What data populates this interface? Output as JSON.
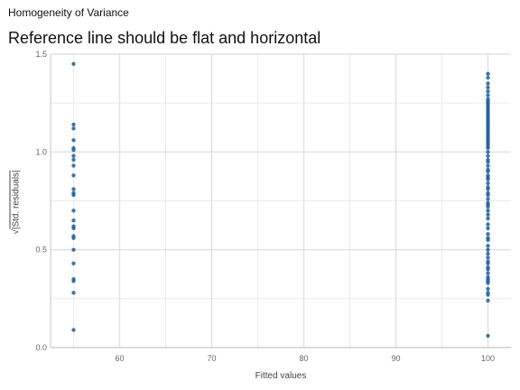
{
  "title": "Homogeneity of Variance",
  "subtitle": "Reference line should be flat and horizontal",
  "chart_data": {
    "type": "scatter",
    "xlabel": "Fitted values",
    "ylabel_radical": "√",
    "ylabel_text": "|Std. residuals|",
    "xlim": [
      52.5,
      102.5
    ],
    "ylim": [
      0,
      1.5
    ],
    "x_ticks": [
      60,
      70,
      80,
      90,
      100
    ],
    "y_ticks": [
      0.0,
      0.5,
      1.0,
      1.5
    ],
    "y_tick_labels": [
      "0.0",
      "0.5",
      "1.0",
      "1.5"
    ],
    "grid": true,
    "point_color": "#1f5f99",
    "series": [
      {
        "x": [
          55,
          55,
          55,
          55,
          55,
          55,
          55,
          55,
          55,
          55,
          55,
          55,
          55,
          55,
          55,
          55,
          55,
          55,
          55,
          55,
          55,
          55,
          55,
          55,
          55
        ],
        "y": [
          1.45,
          1.14,
          1.12,
          1.06,
          1.02,
          1.01,
          0.98,
          0.96,
          0.93,
          0.88,
          0.81,
          0.79,
          0.78,
          0.7,
          0.65,
          0.62,
          0.61,
          0.57,
          0.56,
          0.5,
          0.43,
          0.35,
          0.34,
          0.28,
          0.09
        ]
      },
      {
        "x": [
          100,
          100,
          100,
          100,
          100,
          100,
          100,
          100,
          100,
          100,
          100,
          100,
          100,
          100,
          100,
          100,
          100,
          100,
          100,
          100,
          100,
          100,
          100,
          100,
          100,
          100,
          100,
          100,
          100,
          100,
          100,
          100,
          100,
          100,
          100,
          100,
          100,
          100,
          100,
          100,
          100,
          100,
          100,
          100,
          100,
          100,
          100,
          100,
          100,
          100,
          100,
          100,
          100,
          100,
          100,
          100,
          100,
          100,
          100,
          100,
          100,
          100,
          100,
          100,
          100,
          100,
          100,
          100,
          100,
          100,
          100,
          100,
          100,
          100,
          100,
          100,
          100
        ],
        "y": [
          1.4,
          1.38,
          1.35,
          1.33,
          1.31,
          1.29,
          1.27,
          1.26,
          1.25,
          1.24,
          1.23,
          1.22,
          1.21,
          1.2,
          1.19,
          1.18,
          1.17,
          1.16,
          1.15,
          1.14,
          1.13,
          1.12,
          1.11,
          1.1,
          1.09,
          1.08,
          1.07,
          1.06,
          1.05,
          1.04,
          1.03,
          1.02,
          1.0,
          0.98,
          0.96,
          0.95,
          0.93,
          0.91,
          0.9,
          0.88,
          0.87,
          0.86,
          0.84,
          0.82,
          0.81,
          0.79,
          0.78,
          0.76,
          0.74,
          0.73,
          0.72,
          0.7,
          0.68,
          0.66,
          0.63,
          0.61,
          0.58,
          0.56,
          0.55,
          0.52,
          0.5,
          0.48,
          0.46,
          0.44,
          0.43,
          0.41,
          0.4,
          0.38,
          0.36,
          0.35,
          0.34,
          0.33,
          0.3,
          0.28,
          0.27,
          0.24,
          0.06
        ]
      }
    ]
  }
}
